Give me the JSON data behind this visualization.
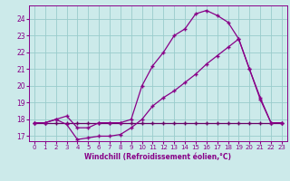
{
  "xlabel": "Windchill (Refroidissement éolien,°C)",
  "bg_color": "#cceaea",
  "grid_color": "#99cccc",
  "line_color": "#880088",
  "line_color2": "#660066",
  "xlim": [
    -0.5,
    23.5
  ],
  "ylim": [
    16.7,
    24.8
  ],
  "yticks": [
    17,
    18,
    19,
    20,
    21,
    22,
    23,
    24
  ],
  "xticks": [
    0,
    1,
    2,
    3,
    4,
    5,
    6,
    7,
    8,
    9,
    10,
    11,
    12,
    13,
    14,
    15,
    16,
    17,
    18,
    19,
    20,
    21,
    22,
    23
  ],
  "line1_x": [
    0,
    1,
    2,
    3,
    4,
    5,
    6,
    7,
    8,
    9,
    10,
    11,
    12,
    13,
    14,
    15,
    16,
    17,
    18,
    19,
    20,
    21,
    22,
    23
  ],
  "line1_y": [
    17.8,
    17.8,
    17.8,
    17.8,
    17.8,
    17.8,
    17.8,
    17.8,
    17.8,
    17.8,
    17.8,
    17.8,
    17.8,
    17.8,
    17.8,
    17.8,
    17.8,
    17.8,
    17.8,
    17.8,
    17.8,
    17.8,
    17.8,
    17.8
  ],
  "line2_x": [
    0,
    1,
    2,
    3,
    4,
    5,
    6,
    7,
    8,
    9,
    10,
    11,
    12,
    13,
    14,
    15,
    16,
    17,
    18,
    19,
    20,
    21,
    22,
    23
  ],
  "line2_y": [
    17.8,
    17.8,
    18.0,
    17.7,
    16.8,
    16.9,
    17.0,
    17.0,
    17.1,
    17.5,
    18.0,
    18.8,
    19.3,
    19.7,
    20.2,
    20.7,
    21.3,
    21.8,
    22.3,
    22.8,
    21.0,
    19.3,
    17.8,
    17.8
  ],
  "line3_x": [
    0,
    1,
    2,
    3,
    4,
    5,
    6,
    7,
    8,
    9,
    10,
    11,
    12,
    13,
    14,
    15,
    16,
    17,
    18,
    19,
    20,
    21,
    22,
    23
  ],
  "line3_y": [
    17.8,
    17.8,
    18.0,
    18.2,
    17.5,
    17.5,
    17.8,
    17.8,
    17.8,
    18.0,
    20.0,
    21.2,
    22.0,
    23.0,
    23.4,
    24.3,
    24.5,
    24.2,
    23.8,
    22.8,
    21.0,
    19.2,
    17.8,
    17.8
  ]
}
